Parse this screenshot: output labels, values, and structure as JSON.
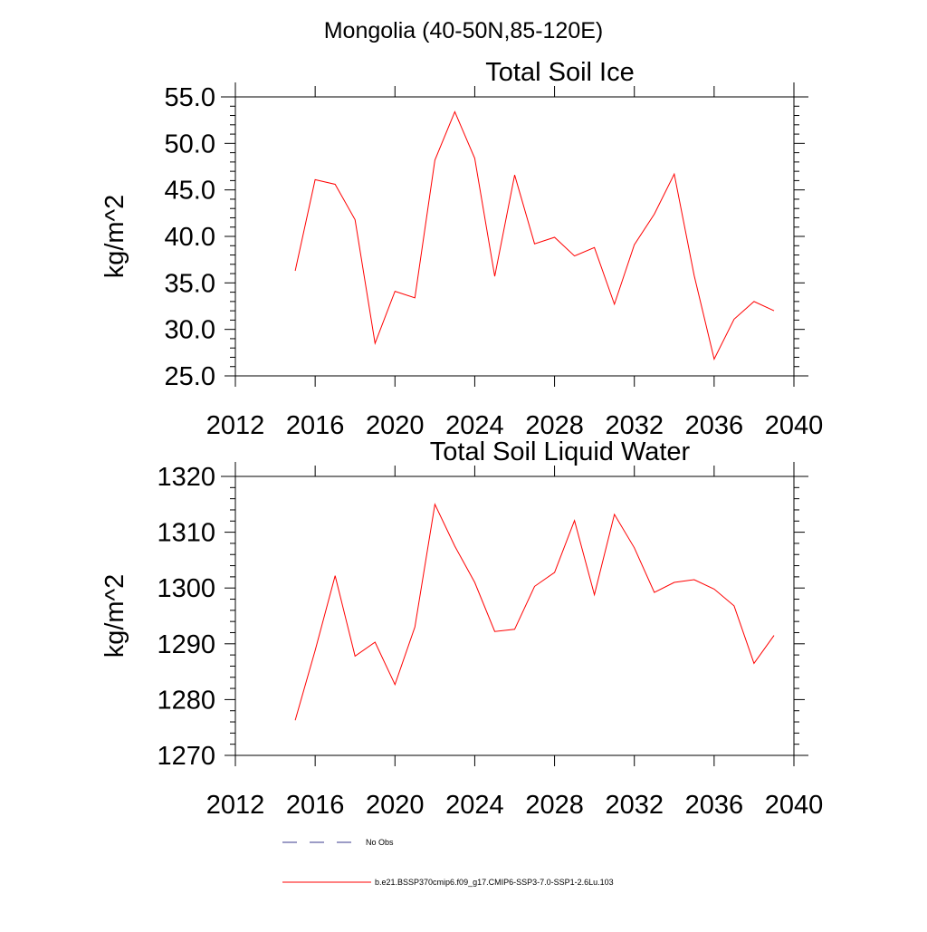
{
  "figure": {
    "supertitle": "Mongolia (40-50N,85-120E)"
  },
  "chart_data": [
    {
      "type": "line",
      "title": "Total Soil Ice",
      "xlabel": "",
      "ylabel": "kg/m^2",
      "xlim": [
        2012,
        2040
      ],
      "ylim": [
        25,
        55
      ],
      "x_ticks": [
        2012,
        2016,
        2020,
        2024,
        2028,
        2032,
        2036,
        2040
      ],
      "y_ticks": [
        "25.0",
        "30.0",
        "35.0",
        "40.0",
        "45.0",
        "50.0",
        "55.0"
      ],
      "grid": false,
      "color": "#ff0000",
      "series": [
        {
          "name": "b.e21.BSSP370cmip6.f09_g17.CMIP6-SSP3-7.0-SSP1-2.6Lu.103",
          "x": [
            2015,
            2016,
            2017,
            2018,
            2019,
            2020,
            2021,
            2022,
            2023,
            2024,
            2025,
            2026,
            2027,
            2028,
            2029,
            2030,
            2031,
            2032,
            2033,
            2034,
            2035,
            2036,
            2037,
            2038,
            2039
          ],
          "values": [
            36.3,
            46.1,
            45.6,
            41.8,
            28.5,
            34.1,
            33.4,
            48.2,
            53.4,
            48.4,
            35.7,
            46.6,
            39.2,
            39.9,
            37.9,
            38.8,
            32.7,
            39.1,
            42.4,
            46.7,
            35.8,
            26.8,
            31.1,
            33.0,
            32.0
          ]
        }
      ]
    },
    {
      "type": "line",
      "title": "Total Soil Liquid Water",
      "xlabel": "",
      "ylabel": "kg/m^2",
      "xlim": [
        2012,
        2040
      ],
      "ylim": [
        1270,
        1320
      ],
      "x_ticks": [
        2012,
        2016,
        2020,
        2024,
        2028,
        2032,
        2036,
        2040
      ],
      "y_ticks": [
        "1270",
        "1280",
        "1290",
        "1300",
        "1310",
        "1320"
      ],
      "grid": false,
      "color": "#ff0000",
      "series": [
        {
          "name": "b.e21.BSSP370cmip6.f09_g17.CMIP6-SSP3-7.0-SSP1-2.6Lu.103",
          "x": [
            2015,
            2016,
            2017,
            2018,
            2019,
            2020,
            2021,
            2022,
            2023,
            2024,
            2025,
            2026,
            2027,
            2028,
            2029,
            2030,
            2031,
            2032,
            2033,
            2034,
            2035,
            2036,
            2037,
            2038,
            2039
          ],
          "values": [
            1276.3,
            1288.8,
            1302.2,
            1287.8,
            1290.3,
            1282.7,
            1293.0,
            1315.0,
            1307.5,
            1301.0,
            1292.2,
            1292.6,
            1300.3,
            1302.8,
            1312.1,
            1298.8,
            1313.2,
            1307.2,
            1299.2,
            1301.0,
            1301.5,
            1299.8,
            1296.8,
            1286.5,
            1291.5
          ]
        }
      ]
    }
  ],
  "legend": {
    "placement": "bottom",
    "entries": [
      {
        "label": "No Obs",
        "color": "#3a3a8c",
        "style": "dashed"
      },
      {
        "label": "b.e21.BSSP370cmip6.f09_g17.CMIP6-SSP3-7.0-SSP1-2.6Lu.103",
        "color": "#ff0000",
        "style": "solid"
      }
    ]
  }
}
